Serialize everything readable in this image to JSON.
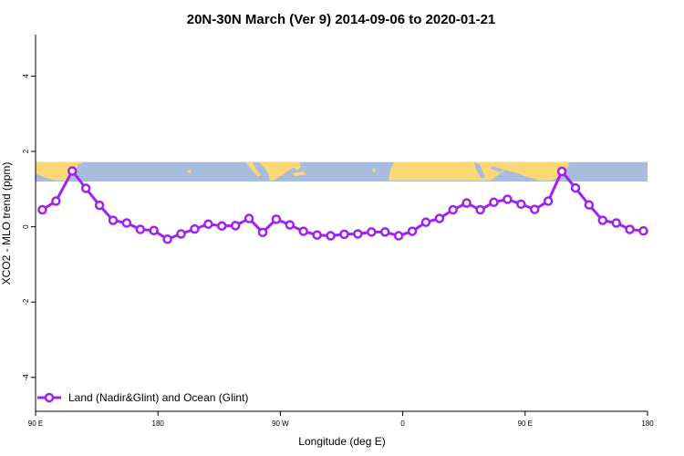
{
  "chart_data": {
    "type": "line",
    "title": "20N-30N March (Ver 9)   2014-09-06 to 2020-01-21",
    "xlabel": "Longitude (deg E)",
    "ylabel": "XCO2 - MLO trend (ppm)",
    "x_ticks": [
      {
        "value": 0,
        "label": "90 E"
      },
      {
        "value": 90,
        "label": "180"
      },
      {
        "value": 180,
        "label": "90 W"
      },
      {
        "value": 270,
        "label": "0"
      },
      {
        "value": 360,
        "label": "90 E"
      },
      {
        "value": 450,
        "label": "180"
      }
    ],
    "y_ticks": [
      {
        "value": -4,
        "label": "-4"
      },
      {
        "value": -2,
        "label": "-2"
      },
      {
        "value": 0,
        "label": "0"
      },
      {
        "value": 2,
        "label": "2"
      },
      {
        "value": 4,
        "label": "4"
      }
    ],
    "xlim": [
      0,
      450
    ],
    "ylim": [
      -4.9,
      5.1
    ],
    "map_band": {
      "ymin": 1.2,
      "ymax": 1.72,
      "ocean_color": "#a8bcdd",
      "land_color": "#fcd775"
    },
    "series": [
      {
        "name": "Land (Nadir&Glint) and Ocean (Glint)",
        "color": "#a020f0",
        "x": [
          5,
          15,
          27,
          37,
          47,
          57,
          67,
          77,
          87,
          97,
          107,
          117,
          127,
          137,
          147,
          157,
          167,
          177,
          187,
          197,
          207,
          217,
          227,
          237,
          247,
          257,
          267,
          277,
          287,
          297,
          307,
          317,
          327,
          337,
          347,
          357,
          367,
          377,
          387,
          397,
          407,
          417,
          427,
          437,
          447
        ],
        "values": [
          0.45,
          0.68,
          1.48,
          1.02,
          0.57,
          0.17,
          0.1,
          -0.07,
          -0.1,
          -0.33,
          -0.19,
          -0.06,
          0.07,
          0.02,
          0.03,
          0.22,
          -0.15,
          0.2,
          0.05,
          -0.12,
          -0.22,
          -0.24,
          -0.2,
          -0.19,
          -0.14,
          -0.14,
          -0.24,
          -0.12,
          0.12,
          0.22,
          0.45,
          0.63,
          0.45,
          0.65,
          0.73,
          0.6,
          0.46,
          0.68,
          1.47,
          1.03,
          0.58,
          0.17,
          0.1,
          -0.07,
          -0.11
        ]
      }
    ],
    "legend": {
      "position": "bottom-left",
      "entries": [
        "Land (Nadir&Glint) and Ocean (Glint)"
      ]
    }
  }
}
